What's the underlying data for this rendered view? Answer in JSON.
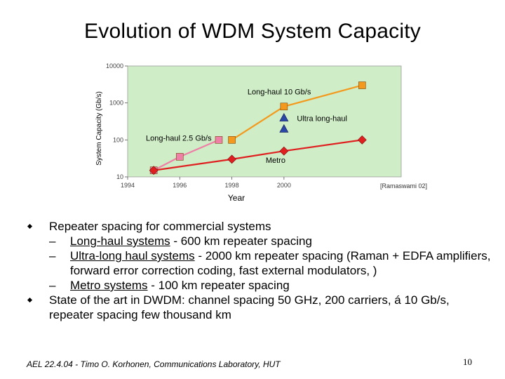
{
  "slide": {
    "title": "Evolution of WDM System Capacity",
    "footer": "AEL 22.4.04 - Timo O. Korhonen, Communications Laboratory, HUT",
    "page_number": "10"
  },
  "bullets": {
    "b1": "Repeater spacing for commercial systems",
    "s1_link": "Long-haul systems",
    "s1_rest": " - 600 km repeater spacing",
    "s2_link": "Ultra-long haul systems",
    "s2_rest": " - 2000 km repeater spacing (Raman + EDFA amplifiers, forward error correction coding, fast external modulators, )",
    "s3_link": "Metro systems",
    "s3_rest": " - 100 km repeater spacing",
    "b2": "State of the art in DWDM: channel spacing 50 GHz, 200 carriers, á 10 Gb/s, repeater spacing few thousand km"
  },
  "chart_data": {
    "type": "line",
    "xlabel": "Year",
    "ylabel": "System Capacity (Gb/s)",
    "x_ticks": [
      "1994",
      "1996",
      "1998",
      "2000"
    ],
    "y_ticks": [
      "10",
      "100",
      "1000",
      "10000"
    ],
    "xlim": [
      1994,
      2004.5
    ],
    "ylim": [
      10,
      10000
    ],
    "y_scale": "log",
    "grid": false,
    "plot_background": "#cfedc6",
    "source_note": "[Ramaswami 02]",
    "series": [
      {
        "name": "Long-haul 10 Gb/s",
        "color": "#f39a1e",
        "marker": "square",
        "x": [
          1998,
          2000,
          2003
        ],
        "y": [
          100,
          800,
          3000
        ]
      },
      {
        "name": "Long-haul 2.5 Gb/s",
        "color": "#ee7fa6",
        "marker": "square",
        "x": [
          1995,
          1996,
          1997.5
        ],
        "y": [
          15,
          35,
          100
        ]
      },
      {
        "name": "Metro",
        "color": "#e02020",
        "marker": "diamond",
        "x": [
          1995,
          1998,
          2000,
          2003
        ],
        "y": [
          15,
          30,
          50,
          100
        ]
      },
      {
        "name": "Ultra long-haul",
        "color": "#2a47a8",
        "marker": "triangle",
        "x": [
          2000,
          2000
        ],
        "y": [
          400,
          200
        ]
      }
    ],
    "annotations": [
      "Long-haul 10 Gb/s",
      "Ultra long-haul",
      "Long-haul 2.5 Gb/s",
      "Metro"
    ]
  }
}
